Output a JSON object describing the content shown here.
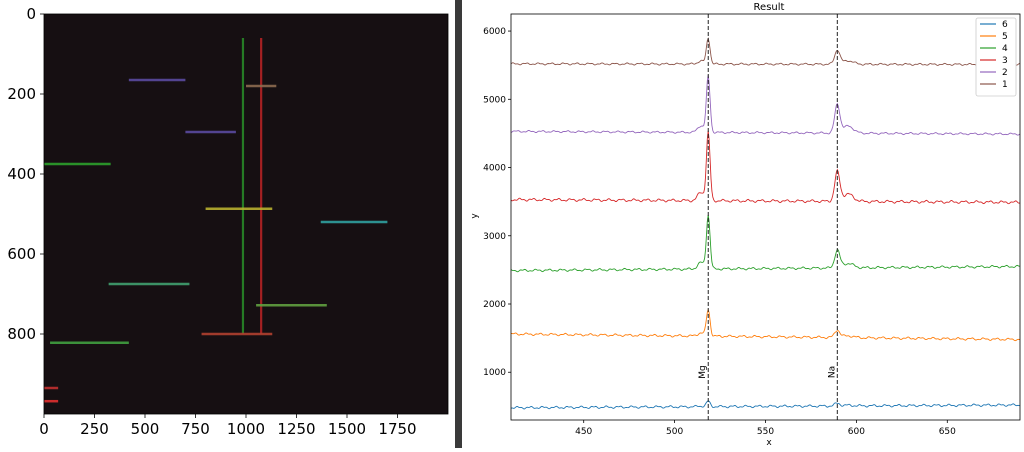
{
  "colors": {
    "image_bg": "#160f12",
    "divider": "#3a3a3a",
    "series_6": "#1f77b4",
    "series_5": "#ff7f0e",
    "series_4": "#2ca02c",
    "series_3": "#d62728",
    "series_2": "#9467bd",
    "series_1": "#8c564b"
  },
  "chart_data": [
    {
      "type": "heatmap",
      "title": "",
      "xlabel": "",
      "ylabel": "",
      "xlim": [
        0,
        2000
      ],
      "ylim": [
        1000,
        0
      ],
      "x_ticks": [
        "0",
        "250",
        "500",
        "750",
        "1000",
        "1250",
        "1500",
        "1750"
      ],
      "y_ticks": [
        "0",
        "200",
        "400",
        "600",
        "800"
      ],
      "vertical_lines": [
        {
          "x": 985,
          "y_range": [
            60,
            800
          ],
          "color": "#2ca02c"
        },
        {
          "x": 1075,
          "y_range": [
            60,
            800
          ],
          "color": "#d62728"
        }
      ],
      "streaks": [
        {
          "x_range": [
            420,
            700
          ],
          "y": 165,
          "color": "#5a4aa0"
        },
        {
          "x_range": [
            1000,
            1150
          ],
          "y": 180,
          "color": "#8c6a50"
        },
        {
          "x_range": [
            700,
            950
          ],
          "y": 295,
          "color": "#5a4aa0"
        },
        {
          "x_range": [
            0,
            330
          ],
          "y": 375,
          "color": "#2ca02c"
        },
        {
          "x_range": [
            800,
            1130
          ],
          "y": 487,
          "color": "#b8b030"
        },
        {
          "x_range": [
            1370,
            1700
          ],
          "y": 520,
          "color": "#30a0a0"
        },
        {
          "x_range": [
            320,
            720
          ],
          "y": 675,
          "color": "#40a070"
        },
        {
          "x_range": [
            1050,
            1400
          ],
          "y": 728,
          "color": "#60a040"
        },
        {
          "x_range": [
            780,
            1130
          ],
          "y": 800,
          "color": "#b04030"
        },
        {
          "x_range": [
            30,
            420
          ],
          "y": 822,
          "color": "#40a040"
        },
        {
          "x_range": [
            0,
            70
          ],
          "y": 935,
          "color": "#c03030"
        },
        {
          "x_range": [
            0,
            70
          ],
          "y": 968,
          "color": "#e03030"
        }
      ]
    },
    {
      "type": "line",
      "title": "Result",
      "xlabel": "x",
      "ylabel": "y",
      "xlim": [
        410,
        690
      ],
      "ylim": [
        300,
        6250
      ],
      "x_ticks": [
        450,
        500,
        550,
        600,
        650
      ],
      "y_ticks": [
        1000,
        2000,
        3000,
        4000,
        5000,
        6000
      ],
      "grid": false,
      "legend": "top-right",
      "vlines": [
        {
          "x": 518.5,
          "label": "Mg"
        },
        {
          "x": 589.5,
          "label": "Na"
        }
      ],
      "series": [
        {
          "name": "6",
          "color": "#1f77b4",
          "baseline": 480,
          "slope": 40,
          "wiggle": 12,
          "peak1": 80,
          "peak2": 40
        },
        {
          "name": "5",
          "color": "#ff7f0e",
          "baseline": 1560,
          "slope": -80,
          "wiggle": 12,
          "peak1": 390,
          "peak2": 110
        },
        {
          "name": "4",
          "color": "#2ca02c",
          "baseline": 2490,
          "slope": 60,
          "wiggle": 12,
          "peak1": 790,
          "peak2": 260
        },
        {
          "name": "3",
          "color": "#d62728",
          "baseline": 3530,
          "slope": -40,
          "wiggle": 14,
          "peak1": 1000,
          "peak2": 430
        },
        {
          "name": "2",
          "color": "#9467bd",
          "baseline": 4530,
          "slope": -40,
          "wiggle": 10,
          "peak1": 820,
          "peak2": 420
        },
        {
          "name": "1",
          "color": "#8c564b",
          "baseline": 5520,
          "slope": -10,
          "wiggle": 10,
          "peak1": 380,
          "peak2": 210
        }
      ]
    }
  ]
}
